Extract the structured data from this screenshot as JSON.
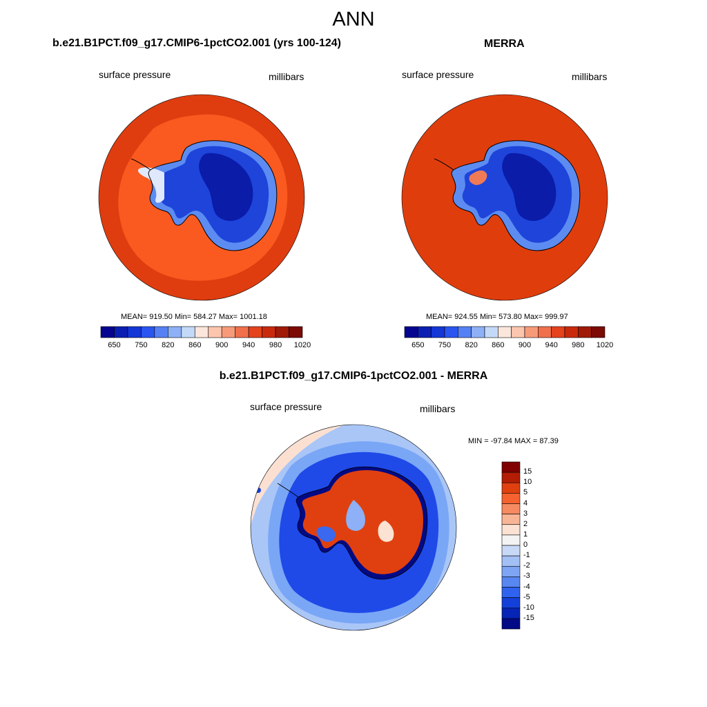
{
  "title": "ANN",
  "panels": [
    {
      "title": "b.e21.B1PCT.f09_g17.CMIP6-1pctCO2.001 (yrs 100-124)",
      "left_label": "surface pressure",
      "right_label": "millibars",
      "stats": "MEAN= 919.50  Min= 584.27  Max= 1001.18"
    },
    {
      "title": "MERRA",
      "left_label": "surface pressure",
      "right_label": "millibars",
      "stats": "MEAN= 924.55  Min= 573.80  Max= 999.97"
    },
    {
      "title": "b.e21.B1PCT.f09_g17.CMIP6-1pctCO2.001 - MERRA",
      "left_label": "surface pressure",
      "right_label": "millibars",
      "stats": "MIN = -97.84 MAX =  87.39"
    }
  ],
  "colorbar_abs": {
    "tick_labels": [
      "650",
      "750",
      "820",
      "860",
      "900",
      "940",
      "980",
      "1020"
    ],
    "colors": [
      "#05058f",
      "#0b1fb2",
      "#1536d6",
      "#2a55f0",
      "#5681f4",
      "#8db0f6",
      "#c3d9f8",
      "#fbe6dc",
      "#fbc5ae",
      "#f79a7a",
      "#f0704c",
      "#e4431e",
      "#c92a0e",
      "#a01a08",
      "#7c0a05"
    ]
  },
  "colorbar_diff": {
    "tick_labels": [
      "15",
      "10",
      "5",
      "4",
      "3",
      "2",
      "1",
      "0",
      "-1",
      "-2",
      "-3",
      "-4",
      "-5",
      "-10",
      "-15"
    ],
    "colors": [
      "#800000",
      "#b31d03",
      "#e0400f",
      "#f6622f",
      "#f68a60",
      "#f8b596",
      "#fce2d3",
      "#f3f3f3",
      "#c8d9f7",
      "#a3c0f5",
      "#7ea5f3",
      "#5887f2",
      "#2f62ee",
      "#1440da",
      "#0624b5",
      "#020a85"
    ]
  },
  "colors": {
    "ocean_far_model": "#df3d0f",
    "ocean_near_model": "#fa5a1f",
    "ocean_merra": "#e03d0d",
    "ice_deep": "#0a1ca8",
    "ice_mid": "#1e44da",
    "ice_edge": "#4f86f2",
    "diff_ocean": "#1f4ae8",
    "diff_ocean_edge": "#7aa6f6"
  }
}
